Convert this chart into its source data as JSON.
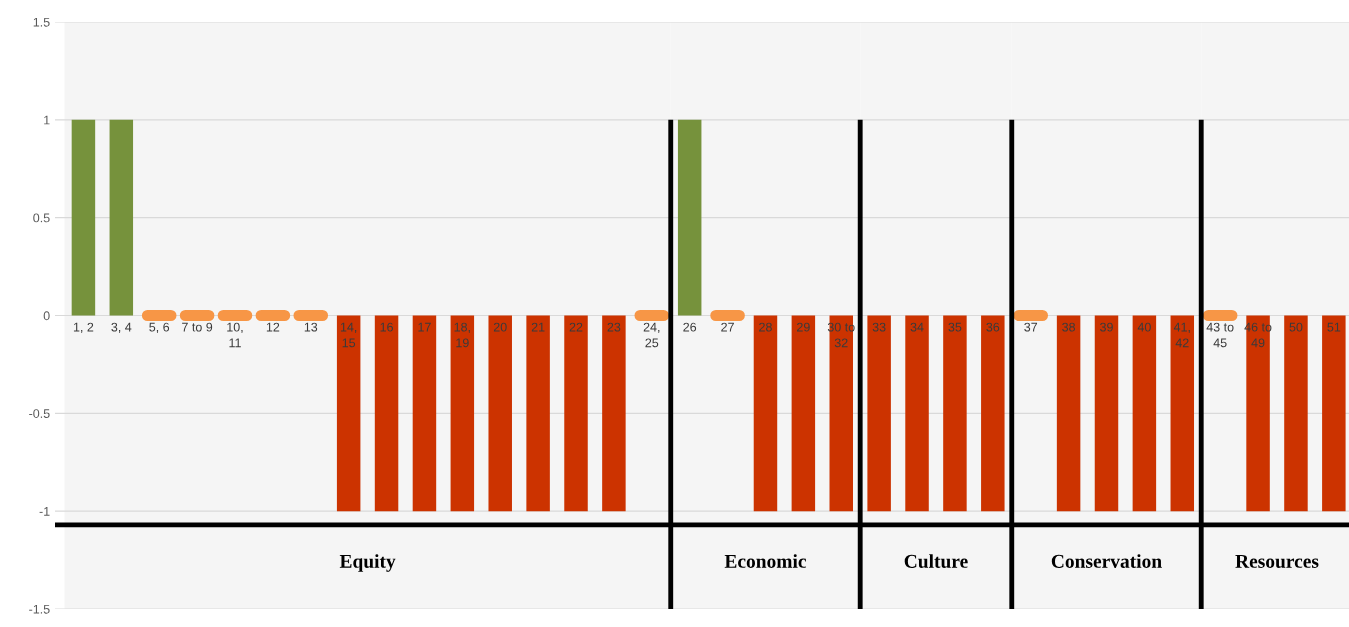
{
  "chart_data": {
    "type": "bar",
    "categories": [
      "1, 2",
      "3, 4",
      "5, 6",
      "7 to 9",
      "10, 11",
      "12",
      "13",
      "14, 15",
      "16",
      "17",
      "18, 19",
      "20",
      "21",
      "22",
      "23",
      "24, 25",
      "26",
      "27",
      "28",
      "29",
      "30 to 32",
      "33",
      "34",
      "35",
      "36",
      "37",
      "38",
      "39",
      "40",
      "41, 42",
      "43 to 45",
      "46 to 49",
      "50",
      "51"
    ],
    "values": [
      1,
      1,
      0,
      0,
      0,
      0,
      0,
      -1,
      -1,
      -1,
      -1,
      -1,
      -1,
      -1,
      -1,
      0,
      1,
      0,
      -1,
      -1,
      -1,
      -1,
      -1,
      -1,
      -1,
      0,
      -1,
      -1,
      -1,
      -1,
      0,
      -1,
      -1,
      -1
    ],
    "colors": [
      "#76923c",
      "#76923c",
      "#f79646",
      "#f79646",
      "#f79646",
      "#f79646",
      "#f79646",
      "#cc3300",
      "#cc3300",
      "#cc3300",
      "#cc3300",
      "#cc3300",
      "#cc3300",
      "#cc3300",
      "#cc3300",
      "#f79646",
      "#76923c",
      "#f79646",
      "#cc3300",
      "#cc3300",
      "#cc3300",
      "#cc3300",
      "#cc3300",
      "#cc3300",
      "#cc3300",
      "#f79646",
      "#cc3300",
      "#cc3300",
      "#cc3300",
      "#cc3300",
      "#f79646",
      "#cc3300",
      "#cc3300",
      "#cc3300"
    ],
    "ylim": [
      -1.5,
      1.5
    ],
    "yticks": [
      -1.5,
      -1,
      -0.5,
      0,
      0.5,
      1,
      1.5
    ],
    "grid": "y",
    "ref_lines": [
      {
        "axis": "y",
        "value": -1.07,
        "color": "#000000"
      }
    ],
    "bands": [
      {
        "axis": "x",
        "from": "1, 2",
        "to": "24, 25",
        "label": "Equity",
        "color": "#f5f5f5"
      },
      {
        "axis": "x",
        "from": "26",
        "to": "30 to 32",
        "label": "Economic",
        "color": "#f5f5f5"
      },
      {
        "axis": "x",
        "from": "33",
        "to": "36",
        "label": "Culture",
        "color": "#f5f5f5"
      },
      {
        "axis": "x",
        "from": "37",
        "to": "41, 42",
        "label": "Conservation",
        "color": "#f5f5f5"
      },
      {
        "axis": "x",
        "from": "43 to 45",
        "to": "51",
        "label": "Resources",
        "color": "#f5f5f5"
      }
    ]
  }
}
